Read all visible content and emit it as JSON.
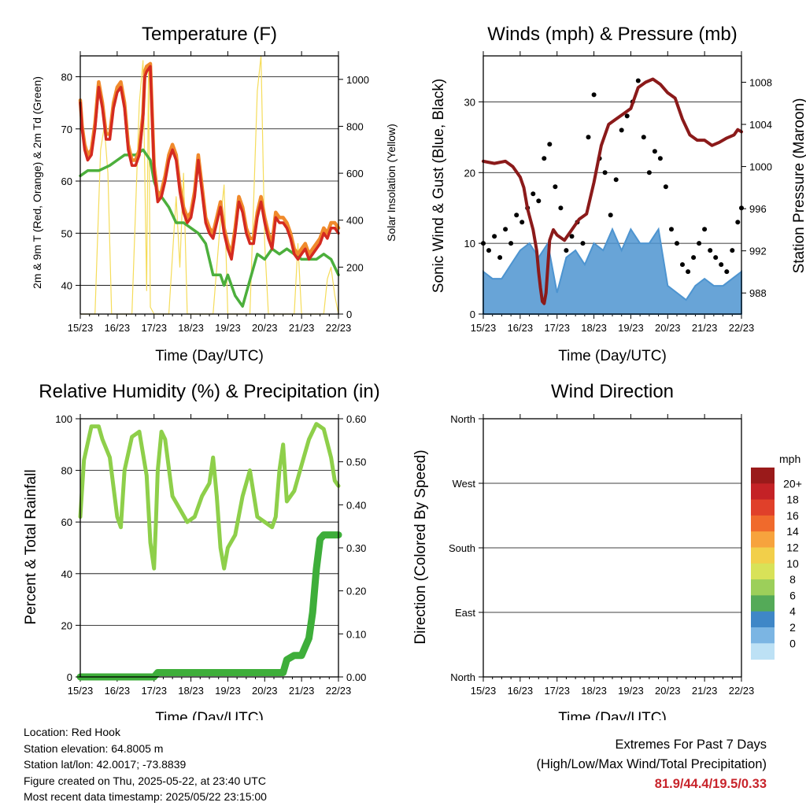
{
  "colors": {
    "temp_2m": "#d42a20",
    "temp_9m": "#f08a2c",
    "dewpoint": "#4caf3c",
    "solar": "#f5dc5a",
    "wind_speed": "#4d94d0",
    "gust": "#000000",
    "pressure": "#8b1a1a",
    "rh": "#8ecf4a",
    "rain": "#3eae3a",
    "extremes": "#c8242b"
  },
  "x_ticks": [
    "15/23",
    "16/23",
    "17/23",
    "18/23",
    "19/23",
    "20/23",
    "21/23",
    "22/23"
  ],
  "chart_data": [
    {
      "id": "temperature",
      "type": "line",
      "title": "Temperature (F)",
      "xlabel": "Time (Day/UTC)",
      "ylabel_left": "2m & 9m T (Red, Orange) & 2m Td (Green)",
      "ylabel_right": "Solar Insolation (Yellow)",
      "x_ticks": [
        "15/23",
        "16/23",
        "17/23",
        "18/23",
        "19/23",
        "20/23",
        "21/23",
        "22/23"
      ],
      "xlim": [
        0,
        7
      ],
      "ylim_left": [
        34.5,
        84
      ],
      "yticks_left": [
        "40",
        "50",
        "60",
        "70",
        "80"
      ],
      "ylim_right": [
        0,
        1100
      ],
      "yticks_right": [
        "0",
        "200",
        "400",
        "600",
        "800",
        "1000"
      ],
      "grid": true,
      "series": [
        {
          "key": "temp_2m",
          "axis": "left",
          "x": [
            0,
            0.05,
            0.12,
            0.2,
            0.3,
            0.4,
            0.5,
            0.6,
            0.7,
            0.8,
            0.9,
            1.0,
            1.1,
            1.2,
            1.3,
            1.4,
            1.5,
            1.6,
            1.7,
            1.75,
            1.8,
            1.9,
            2.0,
            2.05,
            2.1,
            2.2,
            2.3,
            2.4,
            2.5,
            2.6,
            2.7,
            2.8,
            2.9,
            3.0,
            3.1,
            3.2,
            3.3,
            3.4,
            3.5,
            3.6,
            3.7,
            3.8,
            3.9,
            4.0,
            4.1,
            4.2,
            4.3,
            4.4,
            4.5,
            4.6,
            4.7,
            4.8,
            4.9,
            5.0,
            5.1,
            5.2,
            5.3,
            5.4,
            5.5,
            5.6,
            5.7,
            5.8,
            5.9,
            6.0,
            6.1,
            6.2,
            6.3,
            6.4,
            6.5,
            6.6,
            6.7,
            6.8,
            6.9,
            7.0
          ],
          "y": [
            75,
            70,
            66,
            64,
            65,
            70,
            78,
            74,
            68,
            68,
            74,
            77,
            78,
            74,
            66,
            63,
            63,
            65,
            72,
            80,
            81,
            82,
            62,
            59,
            56,
            57,
            60,
            64,
            66,
            64,
            58,
            54,
            52,
            53,
            57,
            64,
            58,
            52,
            50,
            49,
            52,
            55,
            50,
            47,
            45,
            50,
            56,
            54,
            50,
            48,
            48,
            53,
            56,
            52,
            49,
            47,
            53,
            52,
            52,
            51,
            49,
            46,
            45,
            46,
            47,
            45,
            46,
            47,
            48,
            50,
            49,
            51,
            51,
            50
          ]
        },
        {
          "key": "temp_9m",
          "axis": "left",
          "x": [
            0,
            0.05,
            0.12,
            0.2,
            0.3,
            0.4,
            0.5,
            0.6,
            0.7,
            0.8,
            0.9,
            1.0,
            1.1,
            1.2,
            1.3,
            1.4,
            1.5,
            1.6,
            1.7,
            1.75,
            1.8,
            1.9,
            2.0,
            2.05,
            2.1,
            2.2,
            2.3,
            2.4,
            2.5,
            2.6,
            2.7,
            2.8,
            2.9,
            3.0,
            3.1,
            3.2,
            3.3,
            3.4,
            3.5,
            3.6,
            3.7,
            3.8,
            3.9,
            4.0,
            4.1,
            4.2,
            4.3,
            4.4,
            4.5,
            4.6,
            4.7,
            4.8,
            4.9,
            5.0,
            5.1,
            5.2,
            5.3,
            5.4,
            5.5,
            5.6,
            5.7,
            5.8,
            5.9,
            6.0,
            6.1,
            6.2,
            6.3,
            6.4,
            6.5,
            6.6,
            6.7,
            6.8,
            6.9,
            7.0
          ],
          "y": [
            75.5,
            70.5,
            67,
            65,
            66,
            71,
            79,
            75,
            69,
            69,
            75,
            78,
            79,
            75,
            67,
            64,
            64,
            66,
            73,
            81,
            82,
            82.5,
            63,
            60,
            57,
            58,
            61,
            65,
            67,
            65,
            59,
            55,
            53,
            54,
            58,
            65,
            59,
            53,
            51,
            50,
            53,
            56,
            51,
            48,
            46,
            51,
            57,
            55,
            51,
            49,
            49,
            54,
            57,
            53,
            50,
            48,
            54,
            53,
            53,
            52,
            50,
            47,
            46,
            47,
            48,
            46,
            47,
            48,
            49,
            51,
            50,
            52,
            52,
            51
          ]
        },
        {
          "key": "dewpoint",
          "axis": "left",
          "x": [
            0,
            0.2,
            0.5,
            0.8,
            1.0,
            1.2,
            1.5,
            1.7,
            1.9,
            2.0,
            2.1,
            2.2,
            2.4,
            2.6,
            2.8,
            3.0,
            3.2,
            3.4,
            3.6,
            3.8,
            3.9,
            4.0,
            4.2,
            4.4,
            4.6,
            4.8,
            5.0,
            5.2,
            5.4,
            5.6,
            5.8,
            6.0,
            6.2,
            6.4,
            6.6,
            6.8,
            7.0
          ],
          "y": [
            61,
            62,
            62,
            63,
            64,
            65,
            65,
            66,
            64,
            60,
            58,
            57,
            55,
            52,
            52,
            51,
            50,
            48,
            42,
            42,
            40,
            42,
            38,
            36,
            41,
            46,
            45,
            47,
            46,
            47,
            46,
            45,
            45,
            45,
            46,
            45,
            42
          ]
        },
        {
          "key": "solar",
          "axis": "right",
          "x": [
            0,
            0.2,
            0.4,
            0.55,
            0.65,
            0.75,
            0.85,
            1.0,
            1.2,
            1.4,
            1.6,
            1.7,
            1.8,
            1.85,
            1.9,
            2.0,
            2.2,
            2.4,
            2.6,
            2.7,
            2.8,
            2.9,
            3.0,
            3.2,
            3.4,
            3.6,
            3.8,
            3.9,
            4.0,
            4.1,
            4.2,
            4.4,
            4.6,
            4.8,
            4.9,
            5.0,
            5.1,
            5.2,
            5.4,
            5.6,
            5.8,
            5.9,
            6.0,
            6.2,
            6.4,
            6.6,
            6.7,
            6.8,
            6.9,
            7.0
          ],
          "y": [
            0,
            0,
            0,
            700,
            800,
            600,
            0,
            0,
            0,
            0,
            900,
            1080,
            100,
            1050,
            30,
            0,
            0,
            0,
            500,
            200,
            600,
            0,
            0,
            0,
            0,
            0,
            400,
            550,
            0,
            0,
            0,
            0,
            0,
            950,
            1100,
            300,
            0,
            0,
            0,
            0,
            0,
            300,
            0,
            0,
            0,
            0,
            150,
            200,
            80,
            0
          ]
        }
      ]
    },
    {
      "id": "winds",
      "type": "line",
      "title": "Winds (mph) & Pressure (mb)",
      "xlabel": "Time (Day/UTC)",
      "ylabel_left": "Sonic Wind & Gust (Blue, Black)",
      "ylabel_right": "Station Pressure (Maroon)",
      "x_ticks": [
        "15/23",
        "16/23",
        "17/23",
        "18/23",
        "19/23",
        "20/23",
        "21/23",
        "22/23"
      ],
      "xlim": [
        0,
        7
      ],
      "ylim_left": [
        0,
        36.5
      ],
      "yticks_left": [
        "0",
        "10",
        "20",
        "30"
      ],
      "ylim_right": [
        986,
        1010.5
      ],
      "yticks_right": [
        "988",
        "992",
        "996",
        "1000",
        "1004",
        "1008"
      ],
      "grid": true,
      "series": [
        {
          "key": "wind_speed",
          "axis": "left",
          "x": [
            0,
            0.25,
            0.5,
            0.75,
            1.0,
            1.25,
            1.5,
            1.75,
            2.0,
            2.25,
            2.5,
            2.75,
            3.0,
            3.25,
            3.5,
            3.75,
            4.0,
            4.25,
            4.5,
            4.75,
            5.0,
            5.25,
            5.5,
            5.75,
            6.0,
            6.25,
            6.5,
            6.75,
            7.0
          ],
          "y": [
            6,
            5,
            5,
            7,
            9,
            10,
            8,
            10,
            3,
            8,
            9,
            7,
            10,
            9,
            12,
            9,
            12,
            10,
            10,
            12,
            4,
            3,
            2,
            4,
            5,
            4,
            4,
            5,
            6
          ]
        },
        {
          "key": "gust",
          "axis": "left",
          "render": "points",
          "x": [
            0,
            0.15,
            0.3,
            0.45,
            0.6,
            0.75,
            0.9,
            1.05,
            1.2,
            1.35,
            1.5,
            1.65,
            1.8,
            1.95,
            2.1,
            2.25,
            2.4,
            2.55,
            2.7,
            2.85,
            3.0,
            3.15,
            3.3,
            3.45,
            3.6,
            3.75,
            3.9,
            4.05,
            4.2,
            4.35,
            4.5,
            4.65,
            4.8,
            4.95,
            5.1,
            5.25,
            5.4,
            5.55,
            5.7,
            5.85,
            6.0,
            6.15,
            6.3,
            6.45,
            6.6,
            6.75,
            6.9,
            7.0
          ],
          "y": [
            10,
            9,
            11,
            8,
            12,
            10,
            14,
            13,
            15,
            17,
            16,
            22,
            24,
            18,
            15,
            9,
            11,
            13,
            10,
            25,
            31,
            22,
            20,
            14,
            19,
            26,
            28,
            30,
            33,
            25,
            20,
            23,
            22,
            18,
            12,
            10,
            7,
            6,
            8,
            10,
            12,
            9,
            8,
            7,
            6,
            9,
            13,
            15
          ]
        },
        {
          "key": "pressure",
          "axis": "right",
          "x": [
            0,
            0.3,
            0.6,
            0.8,
            1.0,
            1.1,
            1.2,
            1.35,
            1.45,
            1.5,
            1.55,
            1.6,
            1.65,
            1.7,
            1.8,
            1.9,
            2.0,
            2.2,
            2.4,
            2.6,
            2.8,
            3.0,
            3.2,
            3.4,
            3.6,
            3.8,
            4.0,
            4.2,
            4.4,
            4.6,
            4.8,
            5.0,
            5.2,
            5.4,
            5.6,
            5.8,
            6.0,
            6.2,
            6.4,
            6.6,
            6.8,
            6.9,
            7.0
          ],
          "y": [
            1000.5,
            1000.3,
            1000.5,
            1000,
            999,
            998,
            996,
            994,
            992,
            990,
            988.5,
            987.2,
            987,
            988,
            993,
            994,
            993.5,
            993,
            994,
            995,
            995.5,
            998.5,
            1002,
            1004,
            1004.5,
            1005,
            1005.5,
            1007.5,
            1008,
            1008.3,
            1007.8,
            1007,
            1006.5,
            1004.5,
            1003,
            1002.5,
            1002.5,
            1002,
            1002.3,
            1002.7,
            1003,
            1003.5,
            1003.3
          ]
        }
      ]
    },
    {
      "id": "humidity",
      "type": "line",
      "title": "Relative Humidity (%) & Precipitation (in)",
      "xlabel": "Time (Day/UTC)",
      "ylabel_left": "Percent & Total Rainfall",
      "x_ticks": [
        "15/23",
        "16/23",
        "17/23",
        "18/23",
        "19/23",
        "20/23",
        "21/23",
        "22/23"
      ],
      "xlim": [
        0,
        7
      ],
      "ylim_left": [
        0,
        100
      ],
      "yticks_left": [
        "0",
        "20",
        "40",
        "60",
        "80",
        "100"
      ],
      "ylim_right": [
        0,
        0.6
      ],
      "yticks_right": [
        "0.00",
        "0.10",
        "0.20",
        "0.30",
        "0.40",
        "0.50",
        "0.60"
      ],
      "grid": true,
      "series": [
        {
          "key": "rh",
          "axis": "left",
          "x": [
            0,
            0.1,
            0.3,
            0.5,
            0.6,
            0.8,
            1.0,
            1.1,
            1.2,
            1.4,
            1.6,
            1.8,
            1.9,
            2.0,
            2.05,
            2.1,
            2.2,
            2.3,
            2.5,
            2.7,
            2.9,
            3.1,
            3.3,
            3.5,
            3.6,
            3.7,
            3.8,
            3.9,
            4.0,
            4.2,
            4.4,
            4.6,
            4.8,
            5.0,
            5.2,
            5.3,
            5.4,
            5.5,
            5.6,
            5.8,
            6.0,
            6.2,
            6.4,
            6.6,
            6.8,
            6.9,
            7.0
          ],
          "y": [
            62,
            84,
            97,
            97,
            92,
            85,
            62,
            58,
            80,
            93,
            95,
            78,
            52,
            42,
            60,
            80,
            95,
            92,
            70,
            65,
            60,
            62,
            70,
            75,
            85,
            70,
            50,
            42,
            50,
            55,
            70,
            80,
            62,
            60,
            58,
            62,
            80,
            90,
            68,
            72,
            82,
            92,
            98,
            96,
            85,
            76,
            74
          ]
        },
        {
          "key": "rain",
          "axis": "right",
          "x": [
            0,
            1.0,
            2.0,
            2.1,
            3.0,
            4.0,
            5.0,
            5.5,
            5.6,
            5.8,
            6.0,
            6.2,
            6.3,
            6.4,
            6.5,
            6.6,
            6.7,
            7.0
          ],
          "y": [
            0,
            0,
            0,
            0.01,
            0.01,
            0.01,
            0.01,
            0.01,
            0.04,
            0.05,
            0.05,
            0.09,
            0.15,
            0.25,
            0.32,
            0.33,
            0.33,
            0.33
          ]
        }
      ]
    },
    {
      "id": "wind_direction",
      "type": "scatter",
      "title": "Wind Direction",
      "xlabel": "Time (Day/UTC)",
      "ylabel_left": "Direction (Colored By Speed)",
      "x_ticks": [
        "15/23",
        "16/23",
        "17/23",
        "18/23",
        "19/23",
        "20/23",
        "21/23",
        "22/23"
      ],
      "xlim": [
        0,
        7
      ],
      "ylim_left": [
        0,
        360
      ],
      "yticks_left": [
        "North",
        "East",
        "South",
        "West",
        "North"
      ],
      "grid": true,
      "legend": {
        "title": "mph",
        "labels": [
          "20+",
          "18",
          "16",
          "14",
          "12",
          "10",
          "8",
          "6",
          "4",
          "2",
          "0"
        ],
        "colors": [
          "#9a1a1a",
          "#c42226",
          "#e0402a",
          "#f06a2c",
          "#f7a33d",
          "#f2cf4a",
          "#d8e258",
          "#9ccf5a",
          "#54aa58",
          "#3f87c7",
          "#7bb5e3",
          "#bde1f5"
        ],
        "placement": "right"
      },
      "series": [
        {
          "name": "direction",
          "x": [],
          "y": [],
          "speed": []
        }
      ]
    }
  ],
  "footer_left": {
    "location": "Location: Red Hook",
    "elevation": "Station elevation: 64.8005 m",
    "latlon": "Station lat/lon: 42.0017; -73.8839",
    "created": "Figure created on Thu, 2025-05-22, at 23:40 UTC",
    "recent": "Most recent data timestamp: 2025/05/22 23:15:00"
  },
  "footer_right": {
    "line1": "Extremes For Past 7 Days",
    "line2": "(High/Low/Max Wind/Total Precipitation)",
    "values": "81.9/44.4/19.5/0.33"
  }
}
